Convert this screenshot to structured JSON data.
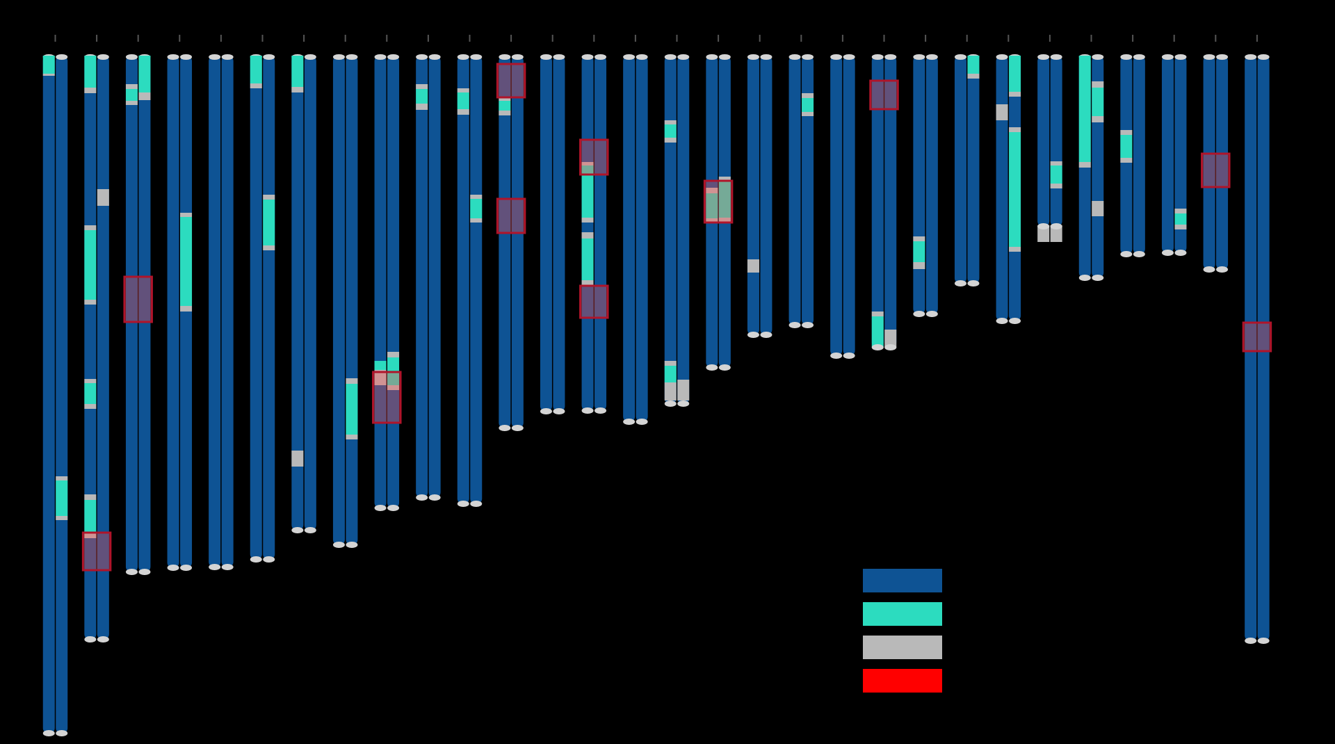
{
  "colors": {
    "background": "#000000",
    "chromosome": "#0e5394",
    "teal": "#2cdcbf",
    "gray": "#b9b9b9",
    "red": "#ff0000",
    "highlight_fill": "#ff4d4d",
    "highlight_stroke": "#b0142a",
    "cap": "#d4d4d4",
    "tick": "#555555"
  },
  "chart_data": {
    "type": "chromosome-ideogram",
    "pairs": [
      {
        "length": 975,
        "a": [
          {
            "s": 0,
            "e": 26,
            "c": "teal"
          },
          {
            "s": 26,
            "e": 29,
            "c": "gray"
          }
        ],
        "b": [
          {
            "s": 605,
            "e": 611,
            "c": "gray"
          },
          {
            "s": 611,
            "e": 662,
            "c": "teal"
          },
          {
            "s": 662,
            "e": 668,
            "c": "gray"
          }
        ],
        "hl": []
      },
      {
        "length": 840,
        "a": [
          {
            "s": 0,
            "e": 46,
            "c": "teal"
          },
          {
            "s": 46,
            "e": 54,
            "c": "gray"
          },
          {
            "s": 244,
            "e": 251,
            "c": "gray"
          },
          {
            "s": 251,
            "e": 351,
            "c": "teal"
          },
          {
            "s": 351,
            "e": 358,
            "c": "gray"
          },
          {
            "s": 465,
            "e": 471,
            "c": "gray"
          },
          {
            "s": 471,
            "e": 501,
            "c": "teal"
          },
          {
            "s": 501,
            "e": 508,
            "c": "gray"
          },
          {
            "s": 631,
            "e": 639,
            "c": "gray"
          },
          {
            "s": 639,
            "e": 686,
            "c": "teal"
          },
          {
            "s": 686,
            "e": 694,
            "c": "gray"
          }
        ],
        "b": [
          {
            "s": 192,
            "e": 216,
            "c": "gray"
          }
        ],
        "hl": [
          [
            686,
            740
          ]
        ]
      },
      {
        "length": 743,
        "a": [
          {
            "s": 41,
            "e": 48,
            "c": "gray"
          },
          {
            "s": 48,
            "e": 65,
            "c": "teal"
          },
          {
            "s": 65,
            "e": 71,
            "c": "gray"
          }
        ],
        "b": [
          {
            "s": 0,
            "e": 53,
            "c": "teal"
          },
          {
            "s": 53,
            "e": 64,
            "c": "gray"
          }
        ],
        "hl": [
          [
            318,
            383
          ]
        ]
      },
      {
        "length": 737,
        "a": [],
        "b": [
          {
            "s": 226,
            "e": 232,
            "c": "gray"
          },
          {
            "s": 232,
            "e": 360,
            "c": "teal"
          },
          {
            "s": 360,
            "e": 368,
            "c": "gray"
          }
        ],
        "hl": []
      },
      {
        "length": 736,
        "a": [],
        "b": [],
        "hl": []
      },
      {
        "length": 725,
        "a": [
          {
            "s": 0,
            "e": 40,
            "c": "teal"
          },
          {
            "s": 40,
            "e": 47,
            "c": "gray"
          }
        ],
        "b": [
          {
            "s": 200,
            "e": 207,
            "c": "gray"
          },
          {
            "s": 207,
            "e": 273,
            "c": "teal"
          },
          {
            "s": 273,
            "e": 280,
            "c": "gray"
          }
        ],
        "hl": []
      },
      {
        "length": 683,
        "a": [
          {
            "s": 0,
            "e": 45,
            "c": "teal"
          },
          {
            "s": 45,
            "e": 53,
            "c": "gray"
          },
          {
            "s": 568,
            "e": 591,
            "c": "gray"
          }
        ],
        "b": [],
        "hl": []
      },
      {
        "length": 704,
        "a": [],
        "b": [
          {
            "s": 464,
            "e": 472,
            "c": "gray"
          },
          {
            "s": 472,
            "e": 545,
            "c": "teal"
          },
          {
            "s": 545,
            "e": 552,
            "c": "gray"
          }
        ],
        "hl": []
      },
      {
        "length": 651,
        "a": [
          {
            "s": 439,
            "e": 452,
            "c": "teal"
          },
          {
            "s": 452,
            "e": 474,
            "c": "gray"
          }
        ],
        "b": [
          {
            "s": 426,
            "e": 434,
            "c": "gray"
          },
          {
            "s": 434,
            "e": 474,
            "c": "teal"
          },
          {
            "s": 474,
            "e": 481,
            "c": "gray"
          }
        ],
        "hl": [
          [
            455,
            528
          ]
        ]
      },
      {
        "length": 636,
        "a": [
          {
            "s": 41,
            "e": 48,
            "c": "gray"
          },
          {
            "s": 48,
            "e": 69,
            "c": "teal"
          },
          {
            "s": 69,
            "e": 78,
            "c": "gray"
          }
        ],
        "b": [],
        "hl": []
      },
      {
        "length": 645,
        "a": [
          {
            "s": 47,
            "e": 53,
            "c": "gray"
          },
          {
            "s": 53,
            "e": 77,
            "c": "teal"
          },
          {
            "s": 77,
            "e": 85,
            "c": "gray"
          }
        ],
        "b": [
          {
            "s": 200,
            "e": 206,
            "c": "gray"
          },
          {
            "s": 206,
            "e": 234,
            "c": "teal"
          },
          {
            "s": 234,
            "e": 240,
            "c": "gray"
          }
        ],
        "hl": []
      },
      {
        "length": 536,
        "a": [
          {
            "s": 59,
            "e": 65,
            "c": "gray"
          },
          {
            "s": 65,
            "e": 79,
            "c": "teal"
          },
          {
            "s": 79,
            "e": 86,
            "c": "gray"
          }
        ],
        "b": [],
        "hl": [
          [
            12,
            60
          ],
          [
            206,
            255
          ]
        ]
      },
      {
        "length": 512,
        "a": [],
        "b": [],
        "hl": []
      },
      {
        "length": 511,
        "a": [
          {
            "s": 153,
            "e": 158,
            "c": "gray"
          },
          {
            "s": 158,
            "e": 233,
            "c": "teal"
          },
          {
            "s": 233,
            "e": 240,
            "c": "gray"
          },
          {
            "s": 254,
            "e": 263,
            "c": "gray"
          },
          {
            "s": 263,
            "e": 323,
            "c": "teal"
          },
          {
            "s": 323,
            "e": 330,
            "c": "gray"
          }
        ],
        "b": [],
        "hl": [
          [
            121,
            171
          ],
          [
            331,
            377
          ]
        ]
      },
      {
        "length": 527,
        "a": [],
        "b": [],
        "hl": []
      },
      {
        "length": 501,
        "a": [
          {
            "s": 93,
            "e": 99,
            "c": "gray"
          },
          {
            "s": 99,
            "e": 118,
            "c": "teal"
          },
          {
            "s": 118,
            "e": 125,
            "c": "gray"
          },
          {
            "s": 439,
            "e": 446,
            "c": "gray"
          },
          {
            "s": 446,
            "e": 470,
            "c": "teal"
          },
          {
            "s": 470,
            "e": 496,
            "c": "gray"
          }
        ],
        "b": [
          {
            "s": 466,
            "e": 496,
            "c": "gray"
          }
        ],
        "hl": []
      },
      {
        "length": 449,
        "a": [
          {
            "s": 190,
            "e": 198,
            "c": "gray"
          },
          {
            "s": 198,
            "e": 234,
            "c": "teal"
          },
          {
            "s": 234,
            "e": 239,
            "c": "gray"
          }
        ],
        "b": [
          {
            "s": 174,
            "e": 181,
            "c": "gray"
          },
          {
            "s": 181,
            "e": 233,
            "c": "teal"
          },
          {
            "s": 233,
            "e": 239,
            "c": "gray"
          }
        ],
        "hl": [
          [
            180,
            240
          ]
        ]
      },
      {
        "length": 402,
        "a": [
          {
            "s": 293,
            "e": 312,
            "c": "gray"
          }
        ],
        "b": [],
        "hl": []
      },
      {
        "length": 388,
        "a": [],
        "b": [
          {
            "s": 54,
            "e": 61,
            "c": "gray"
          },
          {
            "s": 61,
            "e": 81,
            "c": "teal"
          },
          {
            "s": 81,
            "e": 87,
            "c": "gray"
          }
        ],
        "hl": []
      },
      {
        "length": 432,
        "a": [],
        "b": [],
        "hl": []
      },
      {
        "length": 420,
        "a": [
          {
            "s": 368,
            "e": 375,
            "c": "gray"
          },
          {
            "s": 375,
            "e": 420,
            "c": "teal"
          }
        ],
        "b": [
          {
            "s": 394,
            "e": 420,
            "c": "gray"
          }
        ],
        "hl": [
          [
            36,
            77
          ]
        ]
      },
      {
        "length": 372,
        "a": [
          {
            "s": 260,
            "e": 267,
            "c": "gray"
          },
          {
            "s": 267,
            "e": 297,
            "c": "teal"
          },
          {
            "s": 297,
            "e": 307,
            "c": "gray"
          }
        ],
        "b": [],
        "hl": []
      },
      {
        "length": 328,
        "a": [],
        "b": [
          {
            "s": 0,
            "e": 26,
            "c": "teal"
          },
          {
            "s": 26,
            "e": 33,
            "c": "gray"
          }
        ],
        "hl": []
      },
      {
        "length": 382,
        "a": [
          {
            "s": 70,
            "e": 93,
            "c": "gray"
          }
        ],
        "b": [
          {
            "s": 0,
            "e": 52,
            "c": "teal"
          },
          {
            "s": 52,
            "e": 59,
            "c": "gray"
          },
          {
            "s": 103,
            "e": 110,
            "c": "gray"
          },
          {
            "s": 110,
            "e": 275,
            "c": "teal"
          },
          {
            "s": 275,
            "e": 282,
            "c": "gray"
          }
        ],
        "hl": []
      },
      {
        "length": 246,
        "a": [
          {
            "s": 244,
            "e": 268,
            "c": "gray"
          }
        ],
        "b": [
          {
            "s": 152,
            "e": 158,
            "c": "gray"
          },
          {
            "s": 158,
            "e": 184,
            "c": "teal"
          },
          {
            "s": 184,
            "e": 191,
            "c": "gray"
          },
          {
            "s": 244,
            "e": 268,
            "c": "gray"
          }
        ],
        "hl": []
      },
      {
        "length": 320,
        "a": [
          {
            "s": 0,
            "e": 153,
            "c": "teal"
          },
          {
            "s": 153,
            "e": 161,
            "c": "gray"
          }
        ],
        "b": [
          {
            "s": 37,
            "e": 46,
            "c": "gray"
          },
          {
            "s": 46,
            "e": 87,
            "c": "teal"
          },
          {
            "s": 87,
            "e": 96,
            "c": "gray"
          },
          {
            "s": 209,
            "e": 231,
            "c": "gray"
          }
        ],
        "hl": []
      },
      {
        "length": 286,
        "a": [
          {
            "s": 107,
            "e": 114,
            "c": "gray"
          },
          {
            "s": 114,
            "e": 147,
            "c": "teal"
          },
          {
            "s": 147,
            "e": 154,
            "c": "gray"
          }
        ],
        "b": [],
        "hl": []
      },
      {
        "length": 284,
        "a": [],
        "b": [
          {
            "s": 220,
            "e": 227,
            "c": "gray"
          },
          {
            "s": 227,
            "e": 243,
            "c": "teal"
          },
          {
            "s": 243,
            "e": 250,
            "c": "gray"
          }
        ],
        "hl": []
      },
      {
        "length": 308,
        "a": [],
        "b": [],
        "hl": [
          [
            141,
            189
          ]
        ]
      },
      {
        "length": 842,
        "a": [],
        "b": [],
        "hl": [
          [
            384,
            425
          ]
        ]
      }
    ],
    "legend": [
      {
        "color_key": "chromosome"
      },
      {
        "color_key": "teal"
      },
      {
        "color_key": "gray"
      },
      {
        "color_key": "red"
      }
    ]
  }
}
